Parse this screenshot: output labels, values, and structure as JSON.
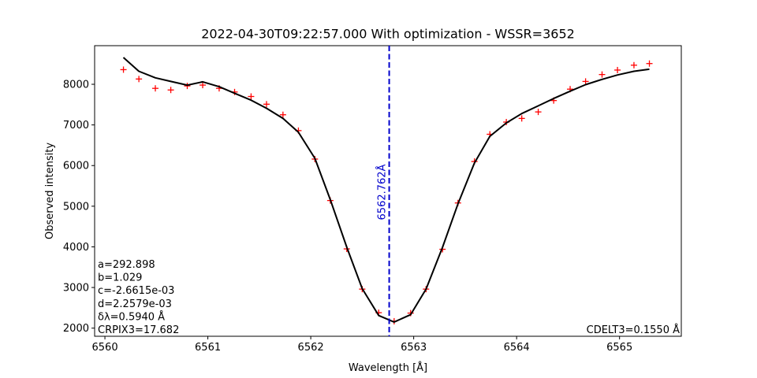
{
  "chart_data": {
    "type": "line",
    "title": "2022-04-30T09:22:57.000 With optimization - WSSR=3652",
    "xlabel": "Wavelength [Å]",
    "ylabel": "Observed intensity",
    "xlim": [
      6559.9,
      6565.6
    ],
    "ylim": [
      1800,
      8950
    ],
    "xticks": [
      6560,
      6561,
      6562,
      6563,
      6564,
      6565
    ],
    "yticks": [
      2000,
      3000,
      4000,
      5000,
      6000,
      7000,
      8000
    ],
    "grid": false,
    "series": [
      {
        "kind": "marker-plus",
        "color": "#ff0000",
        "x": [
          6560.18,
          6560.33,
          6560.49,
          6560.64,
          6560.8,
          6560.95,
          6561.11,
          6561.26,
          6561.42,
          6561.57,
          6561.73,
          6561.88,
          6562.04,
          6562.19,
          6562.35,
          6562.5,
          6562.66,
          6562.81,
          6562.97,
          6563.12,
          6563.28,
          6563.43,
          6563.59,
          6563.74,
          6563.9,
          6564.05,
          6564.21,
          6564.36,
          6564.52,
          6564.67,
          6564.83,
          6564.98,
          6565.14,
          6565.29
        ],
        "y": [
          8360,
          8130,
          7900,
          7860,
          7960,
          7980,
          7900,
          7810,
          7700,
          7510,
          7250,
          6860,
          6160,
          5140,
          3950,
          2960,
          2380,
          2170,
          2370,
          2960,
          3940,
          5080,
          6100,
          6770,
          7070,
          7160,
          7320,
          7600,
          7880,
          8070,
          8240,
          8350,
          8470,
          8510
        ]
      },
      {
        "kind": "line",
        "color": "#000000",
        "x": [
          6560.18,
          6560.33,
          6560.49,
          6560.64,
          6560.8,
          6560.95,
          6561.11,
          6561.26,
          6561.42,
          6561.57,
          6561.73,
          6561.88,
          6562.04,
          6562.19,
          6562.35,
          6562.5,
          6562.66,
          6562.81,
          6562.97,
          6563.12,
          6563.28,
          6563.43,
          6563.59,
          6563.74,
          6563.9,
          6564.05,
          6564.21,
          6564.36,
          6564.52,
          6564.67,
          6564.83,
          6564.98,
          6565.14,
          6565.29
        ],
        "y": [
          8660,
          8320,
          8160,
          8070,
          7980,
          8060,
          7940,
          7780,
          7610,
          7410,
          7160,
          6820,
          6180,
          5160,
          3990,
          2970,
          2310,
          2150,
          2330,
          2960,
          3990,
          5060,
          6060,
          6720,
          7050,
          7280,
          7470,
          7650,
          7830,
          7990,
          8120,
          8230,
          8320,
          8370
        ]
      }
    ],
    "vline": {
      "x": 6562.762,
      "color": "#0000cc",
      "label": "6562.762Å"
    },
    "annotations_left": [
      "a=292.898",
      "b=1.029",
      "c=-2.6615e-03",
      "d=2.2579e-03",
      "δλ=0.5940 Å",
      "CRPIX3=17.682"
    ],
    "annotation_right": "CDELT3=0.1550 Å"
  }
}
